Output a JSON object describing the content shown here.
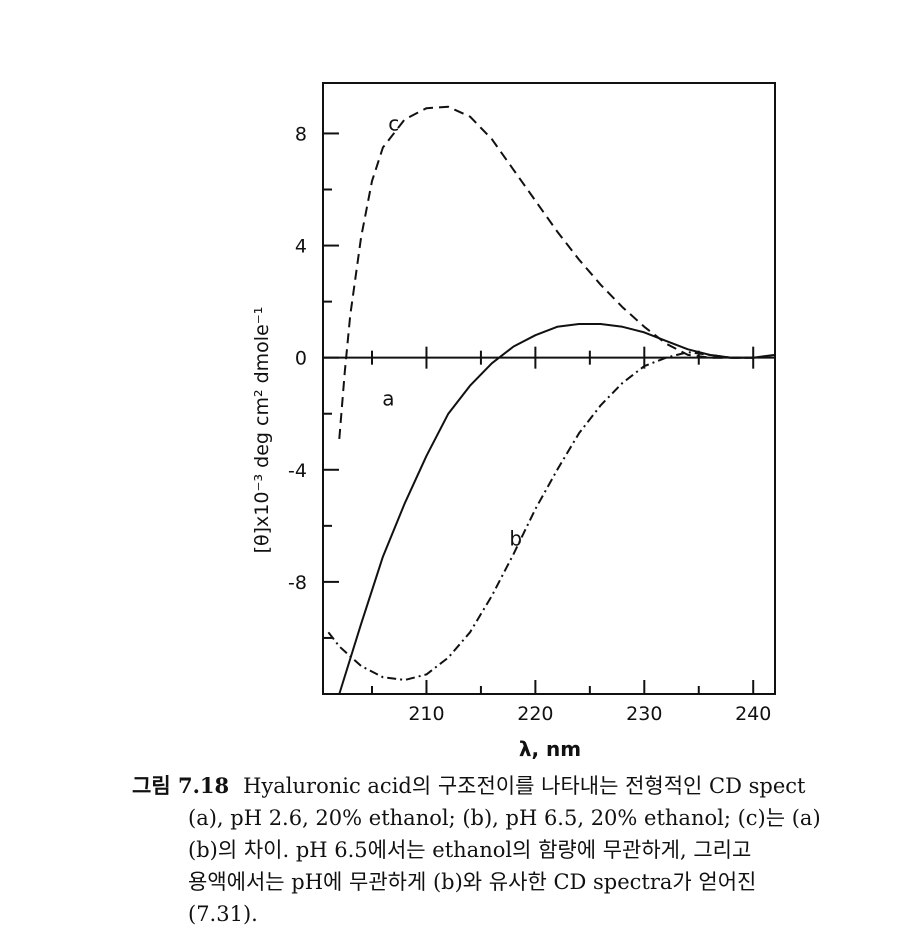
{
  "chart_data": {
    "type": "line",
    "xlabel": "λ, nm",
    "ylabel": "[θ]x10⁻³ deg cm² dmole⁻¹",
    "xlim": [
      200.5,
      242
    ],
    "ylim": [
      -12,
      9.8
    ],
    "xticks": [
      210,
      220,
      230,
      240
    ],
    "yticks": [
      -8,
      -4,
      0,
      4,
      8
    ],
    "xminor": [
      205,
      215,
      225,
      235
    ],
    "yminor": [
      -10,
      -6,
      -2,
      2,
      6
    ],
    "grid": false,
    "series": [
      {
        "name": "a",
        "style": "solid",
        "x": [
          202,
          204,
          206,
          208,
          210,
          212,
          214,
          216,
          218,
          220,
          222,
          224,
          226,
          228,
          230,
          232,
          234,
          236,
          238,
          240,
          242
        ],
        "y": [
          -12.0,
          -9.5,
          -7.1,
          -5.2,
          -3.5,
          -2.0,
          -1.0,
          -0.2,
          0.4,
          0.8,
          1.1,
          1.2,
          1.2,
          1.1,
          0.9,
          0.6,
          0.3,
          0.1,
          0.0,
          0.0,
          0.1
        ]
      },
      {
        "name": "b",
        "style": "dash-dot",
        "x": [
          201,
          202,
          204,
          206,
          208,
          210,
          212,
          214,
          216,
          218,
          220,
          222,
          224,
          226,
          228,
          230,
          232,
          234,
          236,
          238,
          240
        ],
        "y": [
          -9.8,
          -10.3,
          -11.0,
          -11.4,
          -11.5,
          -11.3,
          -10.7,
          -9.8,
          -8.5,
          -7.0,
          -5.4,
          -4.0,
          -2.7,
          -1.7,
          -0.9,
          -0.3,
          0.0,
          0.2,
          0.1,
          0.0,
          0.0
        ]
      },
      {
        "name": "c",
        "style": "dashed",
        "x": [
          202,
          202.5,
          203,
          204,
          205,
          206,
          208,
          210,
          212,
          214,
          216,
          218,
          220,
          222,
          224,
          226,
          228,
          230,
          232,
          234,
          236,
          238,
          240
        ],
        "y": [
          -2.9,
          -0.5,
          1.5,
          4.3,
          6.3,
          7.5,
          8.5,
          8.9,
          8.95,
          8.6,
          7.8,
          6.7,
          5.6,
          4.5,
          3.5,
          2.6,
          1.8,
          1.1,
          0.5,
          0.1,
          0.0,
          0.0,
          0.0
        ]
      }
    ]
  },
  "caption": {
    "label": "그림 7.18",
    "lines": [
      "Hyaluronic acid의 구조전이를 나타내는 전형적인 CD spect",
      "(a), pH 2.6, 20% ethanol; (b), pH 6.5, 20% ethanol; (c)는 (a)",
      "(b)의 차이. pH 6.5에서는 ethanol의 함량에 무관하게, 그리고",
      "용액에서는 pH에 무관하게 (b)와 유사한 CD spectra가 얻어진",
      "(7.31)."
    ]
  }
}
